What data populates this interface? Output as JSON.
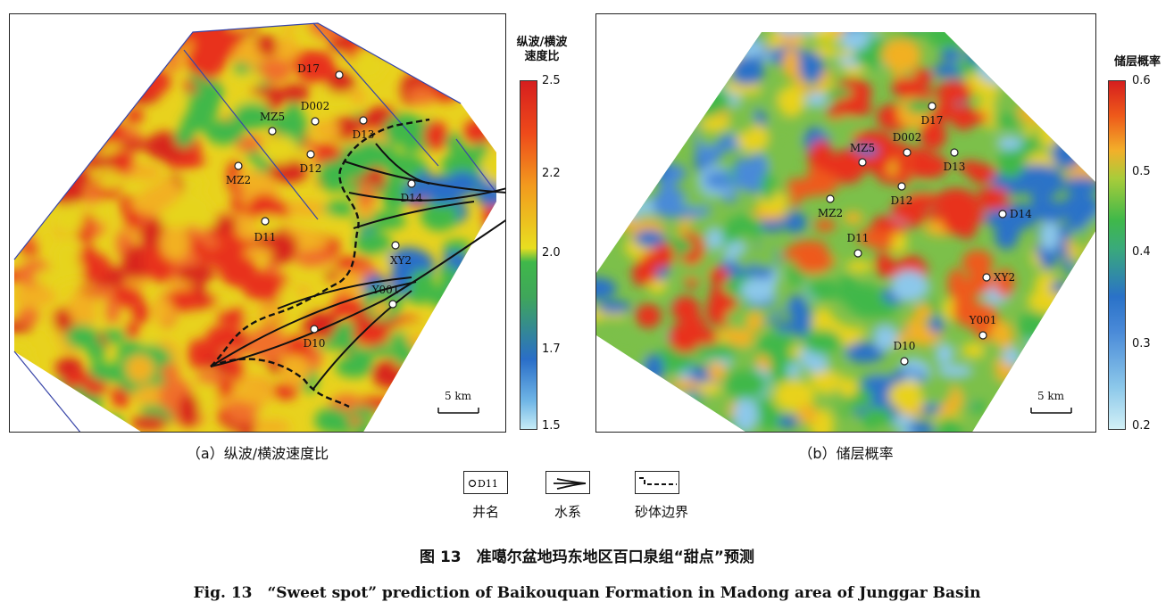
{
  "panel_a": {
    "caption": "（a）纵波/横波速度比",
    "colorbar_title_line1": "纵波/横波",
    "colorbar_title_line2": "速度比",
    "colorbar_ticks": [
      "2.5",
      "2.2",
      "2.0",
      "1.7",
      "1.5"
    ],
    "scale_label": "5 km",
    "wells": [
      "D17",
      "D002",
      "MZ5",
      "D13",
      "D12",
      "MZ2",
      "D14",
      "D11",
      "XY2",
      "Y001",
      "D10"
    ]
  },
  "panel_b": {
    "caption": "（b）储层概率",
    "colorbar_title": "储层概率",
    "colorbar_ticks": [
      "0.6",
      "0.5",
      "0.4",
      "0.3",
      "0.2"
    ],
    "scale_label": "5 km",
    "wells": [
      "D17",
      "D002",
      "MZ5",
      "D13",
      "D12",
      "MZ2",
      "D14",
      "D11",
      "XY2",
      "Y001",
      "D10"
    ]
  },
  "legend": {
    "well_sample": "D11",
    "well_label": "井名",
    "water_label": "水系",
    "sand_label": "砂体边界"
  },
  "figure": {
    "caption_cn": "图 13　准噶尔盆地玛东地区百口泉组“甜点”预测",
    "caption_en": "Fig. 13　“Sweet spot” prediction of Baikouquan Formation in Madong area of Junggar Basin"
  }
}
